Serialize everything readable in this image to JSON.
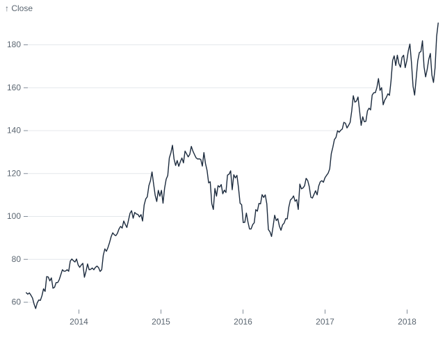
{
  "chart_data": {
    "type": "line",
    "title": "",
    "ylabel": "↑ Close",
    "xlabel": "",
    "grid": true,
    "legend_position": "none",
    "line_color": "#1b2a3d",
    "text_color": "#5a6570",
    "tick_mark_color": "#828c98",
    "grid_color": "#e4e7eb",
    "background_color": "#ffffff",
    "y_ticks": [
      60,
      80,
      100,
      120,
      140,
      160,
      180
    ],
    "x_ticks": [
      {
        "year": 2014,
        "label": "2014"
      },
      {
        "year": 2015,
        "label": "2015"
      },
      {
        "year": 2016,
        "label": "2016"
      },
      {
        "year": 2017,
        "label": "2017"
      },
      {
        "year": 2018,
        "label": "2018"
      }
    ],
    "x_range_note": "weekly close prices",
    "x_start_date": "2013-05-13",
    "x_step_days": 7,
    "ylim": [
      56,
      192
    ],
    "series_name": "Close",
    "values": [
      64.3,
      63.6,
      64.2,
      63.1,
      61.8,
      59.0,
      56.9,
      59.6,
      60.9,
      60.7,
      62.9,
      66.1,
      64.9,
      71.8,
      71.6,
      69.8,
      71.2,
      66.4,
      66.8,
      69.0,
      69.0,
      70.4,
      72.7,
      75.0,
      74.3,
      74.4,
      75.0,
      74.3,
      79.0,
      80.0,
      79.2,
      78.6,
      80.0,
      77.3,
      76.1,
      77.2,
      78.0,
      71.5,
      74.2,
      77.7,
      75.0,
      75.2,
      75.8,
      75.0,
      76.1,
      76.7,
      76.0,
      74.2,
      75.0,
      81.7,
      84.7,
      83.6,
      85.4,
      87.7,
      90.4,
      92.2,
      91.3,
      90.9,
      92.0,
      94.0,
      95.2,
      94.4,
      97.7,
      96.1,
      94.7,
      98.0,
      101.3,
      102.5,
      99.0,
      101.7,
      101.0,
      100.8,
      99.6,
      100.7,
      97.7,
      105.2,
      108.0,
      109.0,
      114.2,
      116.5,
      120.6,
      115.0,
      109.7,
      106.8,
      112.0,
      109.3,
      112.0,
      106.0,
      113.0,
      117.2,
      118.9,
      127.1,
      129.5,
      133.0,
      126.6,
      123.6,
      125.9,
      123.2,
      125.3,
      127.1,
      124.8,
      130.3,
      129.0,
      127.6,
      128.8,
      132.5,
      130.3,
      128.7,
      127.2,
      126.6,
      126.7,
      126.4,
      123.3,
      129.6,
      124.5,
      121.3,
      115.5,
      116.0,
      105.8,
      103.1,
      112.9,
      109.3,
      114.2,
      113.5,
      114.7,
      110.4,
      112.1,
      111.0,
      119.1,
      119.5,
      121.1,
      112.3,
      119.3,
      117.8,
      119.0,
      113.2,
      106.0,
      105.3,
      97.0,
      97.1,
      101.4,
      97.3,
      94.0,
      94.0,
      96.0,
      96.9,
      103.0,
      102.3,
      105.9,
      105.7,
      110.0,
      108.7,
      109.9,
      105.7,
      93.7,
      92.7,
      90.5,
      95.2,
      100.4,
      97.9,
      98.8,
      95.3,
      93.4,
      95.9,
      96.7,
      98.8,
      98.7,
      104.2,
      107.5,
      108.2,
      109.4,
      106.9,
      107.7,
      103.1,
      114.9,
      112.7,
      113.1,
      114.1,
      117.6,
      116.6,
      113.7,
      108.8,
      108.4,
      110.1,
      111.8,
      109.9,
      114.0,
      116.0,
      116.5,
      115.8,
      117.9,
      119.0,
      120.0,
      122.0,
      129.1,
      132.1,
      135.7,
      136.7,
      139.8,
      139.1,
      140.0,
      140.6,
      143.7,
      143.3,
      141.1,
      142.3,
      143.7,
      149.0,
      156.1,
      153.1,
      153.6,
      155.5,
      149.0,
      142.3,
      146.3,
      144.0,
      144.2,
      149.0,
      150.3,
      149.5,
      156.4,
      157.5,
      157.5,
      159.9,
      164.1,
      158.6,
      159.9,
      151.9,
      154.1,
      155.3,
      157.0,
      156.3,
      163.1,
      172.5,
      174.7,
      170.2,
      175.0,
      171.1,
      169.4,
      174.0,
      175.0,
      169.2,
      172.3,
      177.1,
      180.2,
      171.5,
      160.5,
      156.4,
      164.3,
      172.4,
      176.2,
      176.7,
      181.7,
      169.5,
      164.9,
      168.4,
      173.1,
      175.8,
      165.7,
      162.3,
      169.1,
      183.8,
      190.0
    ]
  }
}
